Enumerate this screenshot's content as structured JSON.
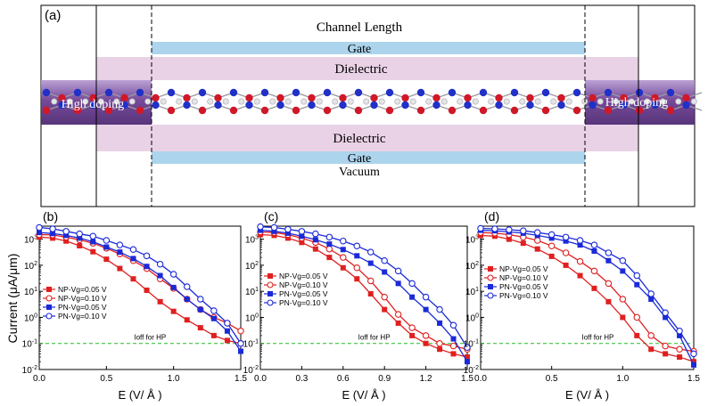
{
  "device": {
    "panel_label": "(a)",
    "channel_label": "Channel Length",
    "gate_top": "Gate",
    "dielectric_top": "Dielectric",
    "doping_left": "High  doping",
    "doping_right": "High doping",
    "dielectric_bottom": "Dielectric",
    "gate_bottom": "Gate",
    "vacuum": "Vacuum",
    "colors": {
      "gate": "#acd4ec",
      "dielectric": "#ead2e6",
      "doping": "#6a3a90",
      "atom_red": "#d01828",
      "atom_blue": "#2030c8"
    }
  },
  "y_axis_label": "Current (μA/μm)",
  "chart_data": [
    {
      "panel": "(b)",
      "type": "line",
      "xlabel": "E (V/ Å )",
      "ylabel": "Current (μA/μm)",
      "xlim": [
        0,
        1.5
      ],
      "ylim_log10": [
        -2,
        3.5
      ],
      "y_scale": "log",
      "xticks": [
        "0.0",
        "0.5",
        "1.0",
        "1.5"
      ],
      "yticks": [
        "10^-2",
        "10^-1",
        "10^0",
        "10^1",
        "10^2",
        "10^3"
      ],
      "legend_position": "left",
      "ioff_label": "Ioff for HP",
      "ioff_value": 0.1,
      "series": [
        {
          "name": "NP-Vg=0.05 V",
          "color": "#e02020",
          "marker": "filled-square",
          "x": [
            0,
            0.1,
            0.2,
            0.3,
            0.4,
            0.5,
            0.6,
            0.7,
            0.8,
            0.9,
            1.0,
            1.1,
            1.2,
            1.3,
            1.4,
            1.5
          ],
          "y": [
            1200,
            1100,
            850,
            560,
            330,
            170,
            75,
            30,
            11,
            4,
            1.7,
            0.8,
            0.4,
            0.2,
            0.13,
            0.1
          ]
        },
        {
          "name": "NP-Vg=0.10 V",
          "color": "#e02020",
          "marker": "open-circle",
          "x": [
            0,
            0.1,
            0.2,
            0.3,
            0.4,
            0.5,
            0.6,
            0.7,
            0.8,
            0.9,
            1.0,
            1.1,
            1.2,
            1.3,
            1.4,
            1.5
          ],
          "y": [
            1500,
            1450,
            1200,
            950,
            700,
            450,
            270,
            150,
            75,
            30,
            13,
            5,
            2,
            1,
            0.6,
            0.3
          ]
        },
        {
          "name": "PN-Vg=0.05 V",
          "color": "#1a2ad8",
          "marker": "filled-square",
          "x": [
            0,
            0.1,
            0.2,
            0.3,
            0.4,
            0.5,
            0.6,
            0.7,
            0.8,
            0.9,
            1.0,
            1.1,
            1.2,
            1.3,
            1.4,
            1.5
          ],
          "y": [
            1800,
            1650,
            1400,
            1100,
            800,
            500,
            320,
            180,
            90,
            40,
            14,
            5,
            2,
            0.9,
            0.3,
            0.05
          ]
        },
        {
          "name": "PN-Vg=0.10 V",
          "color": "#1a2ad8",
          "marker": "open-circle",
          "x": [
            0,
            0.1,
            0.2,
            0.3,
            0.4,
            0.5,
            0.6,
            0.7,
            0.8,
            0.9,
            1.0,
            1.1,
            1.2,
            1.3,
            1.4,
            1.5
          ],
          "y": [
            2800,
            2500,
            2000,
            1600,
            1300,
            900,
            600,
            400,
            230,
            110,
            45,
            15,
            5,
            1.8,
            0.6,
            0.1
          ]
        }
      ]
    },
    {
      "panel": "(c)",
      "type": "line",
      "xlabel": "E (V/ Å )",
      "ylabel": "",
      "xlim": [
        0,
        1.5
      ],
      "ylim_log10": [
        -2,
        3.5
      ],
      "y_scale": "log",
      "xticks": [
        "0.0",
        "0.3",
        "0.6",
        "0.9",
        "1.2",
        "1.5"
      ],
      "yticks": [
        "10^-2",
        "10^-1",
        "10^0",
        "10^1",
        "10^2",
        "10^3"
      ],
      "legend_position": "left",
      "ioff_label": "Ioff for HP",
      "ioff_value": 0.1,
      "series": [
        {
          "name": "NP-Vg=0.05 V",
          "color": "#e02020",
          "marker": "filled-square",
          "x": [
            0,
            0.1,
            0.2,
            0.3,
            0.4,
            0.5,
            0.6,
            0.7,
            0.8,
            0.9,
            1.0,
            1.1,
            1.2,
            1.3,
            1.4,
            1.5
          ],
          "y": [
            1500,
            1400,
            1100,
            750,
            420,
            200,
            80,
            30,
            8,
            2,
            0.6,
            0.2,
            0.1,
            0.06,
            0.04,
            0.03
          ]
        },
        {
          "name": "NP-Vg=0.10 V",
          "color": "#e02020",
          "marker": "open-circle",
          "x": [
            0,
            0.1,
            0.2,
            0.3,
            0.4,
            0.5,
            0.6,
            0.7,
            0.8,
            0.9,
            1.0,
            1.1,
            1.2,
            1.3,
            1.4,
            1.5
          ],
          "y": [
            1900,
            1800,
            1500,
            1100,
            750,
            420,
            200,
            80,
            25,
            6,
            1.3,
            0.4,
            0.2,
            0.1,
            0.08,
            0.06
          ]
        },
        {
          "name": "PN-Vg=0.05 V",
          "color": "#1a2ad8",
          "marker": "filled-square",
          "x": [
            0,
            0.1,
            0.2,
            0.3,
            0.4,
            0.5,
            0.6,
            0.7,
            0.8,
            0.9,
            1.0,
            1.1,
            1.2,
            1.3,
            1.4,
            1.5
          ],
          "y": [
            2200,
            2000,
            1700,
            1300,
            950,
            650,
            400,
            230,
            120,
            55,
            20,
            6,
            2,
            0.6,
            0.15,
            0.02
          ]
        },
        {
          "name": "PN-Vg=0.10 V",
          "color": "#1a2ad8",
          "marker": "open-circle",
          "x": [
            0,
            0.1,
            0.2,
            0.3,
            0.4,
            0.5,
            0.6,
            0.7,
            0.8,
            0.9,
            1.0,
            1.1,
            1.2,
            1.3,
            1.4,
            1.5
          ],
          "y": [
            3000,
            2800,
            2400,
            2000,
            1600,
            1200,
            850,
            550,
            320,
            150,
            60,
            20,
            6,
            2,
            0.5,
            0.07
          ]
        }
      ]
    },
    {
      "panel": "(d)",
      "type": "line",
      "xlabel": "E (V/ Å )",
      "ylabel": "",
      "xlim": [
        0,
        1.5
      ],
      "ylim_log10": [
        -2,
        3.5
      ],
      "y_scale": "log",
      "xticks": [
        "0.0",
        "0.5",
        "1.0",
        "1.5"
      ],
      "yticks": [
        "10^-2",
        "10^-1",
        "10^0",
        "10^1",
        "10^2",
        "10^3"
      ],
      "legend_position": "left",
      "ioff_label": "Ioff for HP",
      "ioff_value": 0.1,
      "series": [
        {
          "name": "NP-Vg=0.05 V",
          "color": "#e02020",
          "marker": "filled-square",
          "x": [
            0,
            0.1,
            0.2,
            0.3,
            0.4,
            0.5,
            0.6,
            0.7,
            0.8,
            0.9,
            1.0,
            1.1,
            1.2,
            1.3,
            1.4,
            1.5
          ],
          "y": [
            1400,
            1300,
            1000,
            700,
            420,
            220,
            100,
            40,
            13,
            4,
            1,
            0.2,
            0.06,
            0.04,
            0.03,
            0.02
          ]
        },
        {
          "name": "NP-Vg=0.10 V",
          "color": "#e02020",
          "marker": "open-circle",
          "x": [
            0,
            0.1,
            0.2,
            0.3,
            0.4,
            0.5,
            0.6,
            0.7,
            0.8,
            0.9,
            1.0,
            1.1,
            1.2,
            1.3,
            1.4,
            1.5
          ],
          "y": [
            1800,
            1700,
            1500,
            1200,
            900,
            550,
            300,
            140,
            60,
            20,
            5,
            1,
            0.2,
            0.08,
            0.06,
            0.05
          ]
        },
        {
          "name": "PN-Vg=0.05 V",
          "color": "#1a2ad8",
          "marker": "filled-square",
          "x": [
            0,
            0.1,
            0.2,
            0.3,
            0.4,
            0.5,
            0.6,
            0.7,
            0.8,
            0.9,
            1.0,
            1.1,
            1.2,
            1.3,
            1.4,
            1.5
          ],
          "y": [
            2200,
            2100,
            1900,
            1700,
            1400,
            1100,
            850,
            600,
            350,
            150,
            60,
            18,
            5,
            1,
            0.2,
            0.015
          ]
        },
        {
          "name": "PN-Vg=0.10 V",
          "color": "#1a2ad8",
          "marker": "open-circle",
          "x": [
            0,
            0.1,
            0.2,
            0.3,
            0.4,
            0.5,
            0.6,
            0.7,
            0.8,
            0.9,
            1.0,
            1.1,
            1.2,
            1.3,
            1.4,
            1.5
          ],
          "y": [
            2600,
            2500,
            2300,
            2100,
            1800,
            1500,
            1200,
            900,
            600,
            300,
            150,
            40,
            8,
            1.5,
            0.3,
            0.04
          ]
        }
      ]
    }
  ]
}
